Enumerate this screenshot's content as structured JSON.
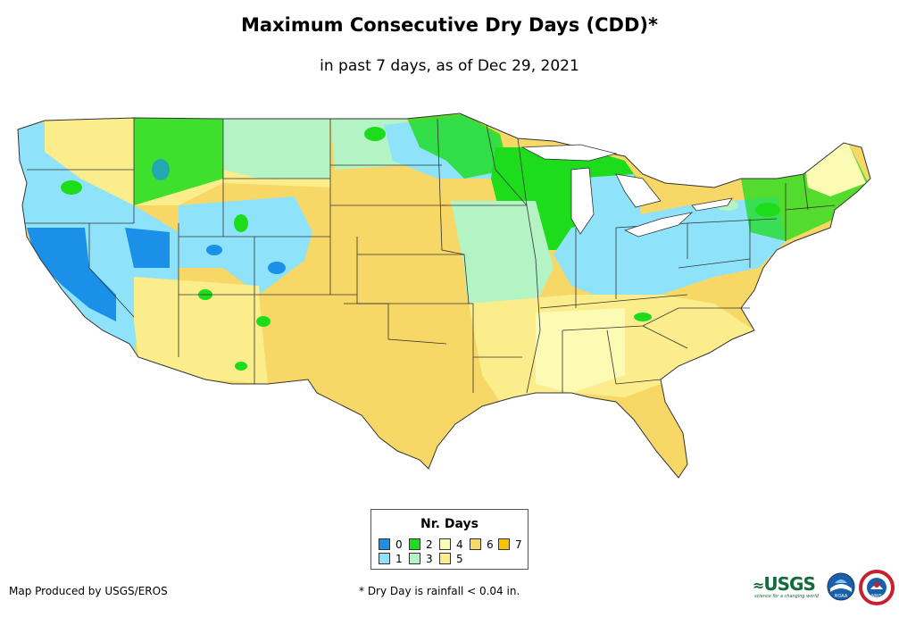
{
  "header": {
    "title": "Maximum Consecutive Dry Days (CDD)*",
    "subtitle": "in past 7 days, as of Dec 29, 2021"
  },
  "legend": {
    "title": "Nr. Days",
    "items": [
      {
        "label": "0",
        "color": "#1a90e8"
      },
      {
        "label": "1",
        "color": "#8ee3fb"
      },
      {
        "label": "2",
        "color": "#1cdc1c"
      },
      {
        "label": "3",
        "color": "#b4f3c3"
      },
      {
        "label": "4",
        "color": "#fbfbb4"
      },
      {
        "label": "5",
        "color": "#fbed8c"
      },
      {
        "label": "6",
        "color": "#f7d765"
      },
      {
        "label": "7",
        "color": "#f7c200"
      }
    ]
  },
  "footer": {
    "credit": "Map Produced by USGS/EROS",
    "footnote": "* Dry Day is rainfall < 0.04 in.",
    "usgs_logo": "USGS",
    "usgs_tagline": "science for a changing world"
  },
  "logos": {
    "noaa_text": "NOAA",
    "nws_text": "NWS"
  }
}
